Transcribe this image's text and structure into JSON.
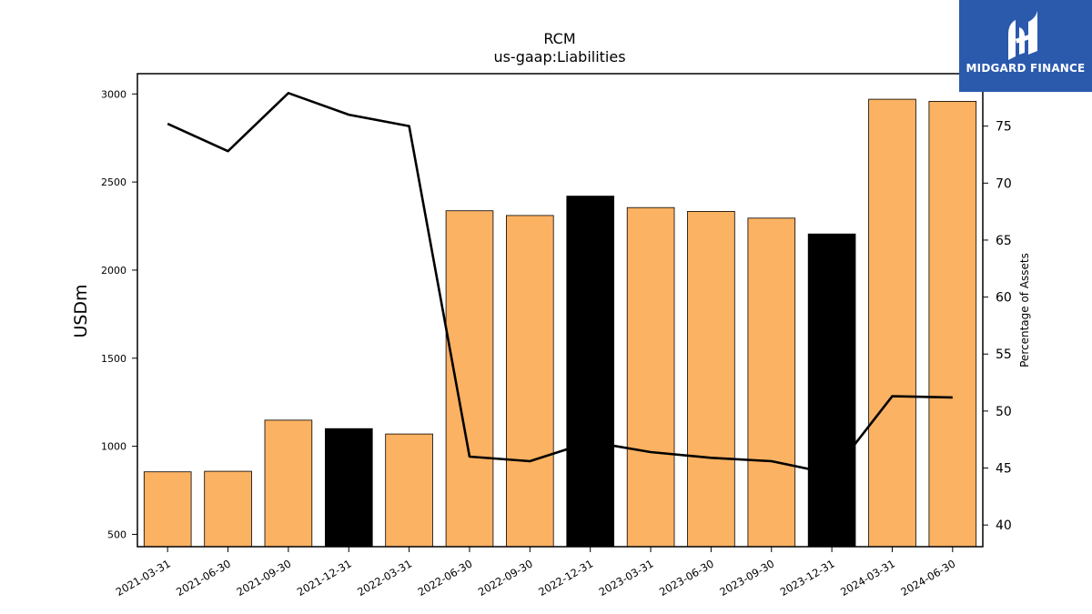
{
  "logo": {
    "text": "MIDGARD FINANCE",
    "background": "#2b5aad"
  },
  "chart_data": {
    "type": "bar",
    "title": "RCM",
    "subtitle": "us-gaap:Liabilities",
    "ylabel": "USDm",
    "y2label": "Percentage of Assets",
    "ylim": [
      430,
      3115
    ],
    "y2lim": [
      38.1,
      79.6
    ],
    "yticks": [
      500,
      1000,
      1500,
      2000,
      2500,
      3000
    ],
    "y2ticks": [
      40,
      45,
      50,
      55,
      60,
      65,
      70,
      75
    ],
    "categories": [
      "2021-03-31",
      "2021-06-30",
      "2021-09-30",
      "2021-12-31",
      "2022-03-31",
      "2022-06-30",
      "2022-09-30",
      "2022-12-31",
      "2023-03-31",
      "2023-06-30",
      "2023-09-30",
      "2023-12-31",
      "2024-03-31",
      "2024-06-30"
    ],
    "series": [
      {
        "axis": "left",
        "kind": "bar",
        "values": [
          855,
          858,
          1148,
          1100,
          1070,
          2337,
          2310,
          2420,
          2355,
          2333,
          2295,
          2205,
          2970,
          2958
        ],
        "colors": [
          "#fbb262",
          "#fbb262",
          "#fbb262",
          "#000000",
          "#fbb262",
          "#fbb262",
          "#fbb262",
          "#000000",
          "#fbb262",
          "#fbb262",
          "#fbb262",
          "#000000",
          "#fbb262",
          "#fbb262"
        ]
      },
      {
        "axis": "right",
        "kind": "line",
        "color": "#000000",
        "values": [
          75.2,
          72.8,
          77.9,
          76.0,
          75.0,
          46.0,
          45.6,
          47.3,
          46.4,
          45.9,
          45.6,
          44.5,
          51.3,
          51.2
        ]
      }
    ],
    "grid": false,
    "legend": "none"
  }
}
